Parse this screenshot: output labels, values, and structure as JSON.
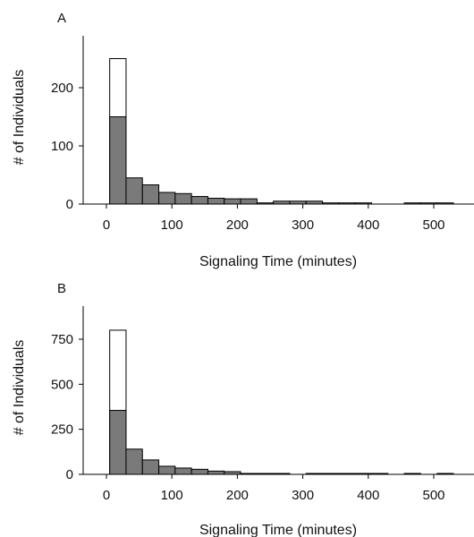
{
  "chart_data": [
    {
      "type": "histogram",
      "panel_label": "A",
      "xlabel": "Signaling Time (minutes)",
      "ylabel": "# of Individuals",
      "xlim": [
        -30,
        530
      ],
      "ylim": [
        0,
        290
      ],
      "x_ticks": [
        0,
        100,
        200,
        300,
        400,
        500
      ],
      "y_ticks": [
        0,
        100,
        200
      ],
      "bin_width": 25,
      "colors": {
        "filled": "#7a7a7a",
        "open": "#ffffff",
        "edge": "#000000"
      },
      "series": [
        {
          "style": "open",
          "bins": [
            {
              "x0": 5,
              "x1": 30,
              "value": 250
            }
          ]
        },
        {
          "style": "filled",
          "bins": [
            {
              "x0": 5,
              "x1": 30,
              "value": 150
            },
            {
              "x0": 30,
              "x1": 55,
              "value": 45
            },
            {
              "x0": 55,
              "x1": 80,
              "value": 33
            },
            {
              "x0": 80,
              "x1": 105,
              "value": 20
            },
            {
              "x0": 105,
              "x1": 130,
              "value": 18
            },
            {
              "x0": 130,
              "x1": 155,
              "value": 13
            },
            {
              "x0": 155,
              "x1": 180,
              "value": 10
            },
            {
              "x0": 180,
              "x1": 205,
              "value": 9
            },
            {
              "x0": 205,
              "x1": 230,
              "value": 9
            },
            {
              "x0": 230,
              "x1": 255,
              "value": 2
            },
            {
              "x0": 255,
              "x1": 280,
              "value": 5
            },
            {
              "x0": 280,
              "x1": 305,
              "value": 5
            },
            {
              "x0": 305,
              "x1": 330,
              "value": 5
            },
            {
              "x0": 330,
              "x1": 355,
              "value": 2
            },
            {
              "x0": 355,
              "x1": 380,
              "value": 2
            },
            {
              "x0": 380,
              "x1": 405,
              "value": 2
            },
            {
              "x0": 455,
              "x1": 480,
              "value": 2
            },
            {
              "x0": 480,
              "x1": 505,
              "value": 2
            },
            {
              "x0": 505,
              "x1": 530,
              "value": 2
            }
          ]
        }
      ]
    },
    {
      "type": "histogram",
      "panel_label": "B",
      "xlabel": "Signaling Time (minutes)",
      "ylabel": "# of Individuals",
      "xlim": [
        -30,
        530
      ],
      "ylim": [
        0,
        900
      ],
      "x_ticks": [
        0,
        100,
        200,
        300,
        400,
        500
      ],
      "y_ticks": [
        0,
        250,
        500,
        750
      ],
      "bin_width": 25,
      "colors": {
        "filled": "#7a7a7a",
        "open": "#ffffff",
        "edge": "#000000"
      },
      "series": [
        {
          "style": "open",
          "bins": [
            {
              "x0": 5,
              "x1": 30,
              "value": 800
            }
          ]
        },
        {
          "style": "filled",
          "bins": [
            {
              "x0": 5,
              "x1": 30,
              "value": 355
            },
            {
              "x0": 30,
              "x1": 55,
              "value": 140
            },
            {
              "x0": 55,
              "x1": 80,
              "value": 80
            },
            {
              "x0": 80,
              "x1": 105,
              "value": 45
            },
            {
              "x0": 105,
              "x1": 130,
              "value": 35
            },
            {
              "x0": 130,
              "x1": 155,
              "value": 28
            },
            {
              "x0": 155,
              "x1": 180,
              "value": 18
            },
            {
              "x0": 180,
              "x1": 205,
              "value": 15
            },
            {
              "x0": 205,
              "x1": 230,
              "value": 5
            },
            {
              "x0": 230,
              "x1": 255,
              "value": 5
            },
            {
              "x0": 255,
              "x1": 280,
              "value": 5
            },
            {
              "x0": 305,
              "x1": 330,
              "value": 5
            },
            {
              "x0": 330,
              "x1": 355,
              "value": 5
            },
            {
              "x0": 355,
              "x1": 380,
              "value": 5
            },
            {
              "x0": 380,
              "x1": 405,
              "value": 5
            },
            {
              "x0": 405,
              "x1": 430,
              "value": 5
            },
            {
              "x0": 455,
              "x1": 480,
              "value": 5
            },
            {
              "x0": 505,
              "x1": 530,
              "value": 5
            }
          ]
        }
      ]
    }
  ]
}
